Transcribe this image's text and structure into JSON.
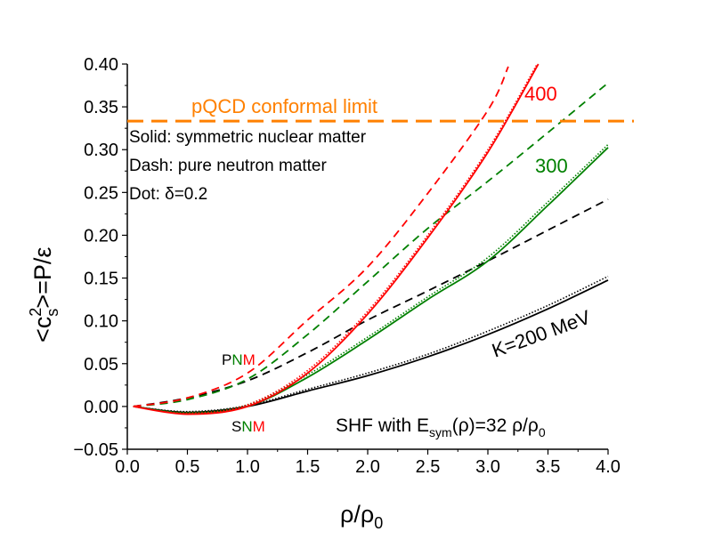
{
  "chart_data": {
    "type": "line",
    "xlabel": "ρ/ρ0",
    "xlabel_main": "ρ/ρ",
    "xlabel_sub": "0",
    "ylabel": "<cs2>=P/ε",
    "ylabel_parts": {
      "pre": "<c",
      "sup": "2",
      "sub": "s",
      "post": ">=P/ε"
    },
    "xlim": [
      0,
      4.0
    ],
    "ylim": [
      -0.05,
      0.4
    ],
    "xticks": [
      "0.0",
      "0.5",
      "1.0",
      "1.5",
      "2.0",
      "2.5",
      "3.0",
      "3.5",
      "4.0"
    ],
    "yticks": [
      "−0.05",
      "0.00",
      "0.05",
      "0.10",
      "0.15",
      "0.20",
      "0.25",
      "0.30",
      "0.35",
      "0.40"
    ],
    "grid": false,
    "reference_line": {
      "label": "pQCD conformal limit",
      "y": 0.3333,
      "color": "#ff8000"
    },
    "legend_text": [
      "Solid: symmetric nuclear matter",
      "Dash: pure neutron matter",
      "Dot: δ=0.2"
    ],
    "annotations": {
      "k400": "400",
      "k300": "300",
      "k200": "K=200 MeV",
      "pnm": [
        "P",
        "N",
        "M"
      ],
      "snm": [
        "S",
        "N",
        "M"
      ],
      "shf": {
        "pre": "SHF with E",
        "sub": "sym",
        "mid": "(ρ)=32 ρ/ρ",
        "sub2": "0"
      }
    },
    "colors": {
      "K200": "#000000",
      "K300": "#008000",
      "K400": "#ff0000"
    },
    "series": [
      {
        "K": 200,
        "style": "solid",
        "color": "#000000",
        "x": [
          0.05,
          0.5,
          1.0,
          1.5,
          2.0,
          2.5,
          3.0,
          3.5,
          4.0
        ],
        "y": [
          0.0,
          -0.007,
          0.0,
          0.018,
          0.036,
          0.058,
          0.084,
          0.114,
          0.1475
        ]
      },
      {
        "K": 200,
        "style": "dotted",
        "color": "#000000",
        "x": [
          0.05,
          0.5,
          1.0,
          1.5,
          2.0,
          2.5,
          3.0,
          3.5,
          4.0
        ],
        "y": [
          0.0,
          -0.006,
          0.001,
          0.02,
          0.039,
          0.061,
          0.088,
          0.118,
          0.152
        ]
      },
      {
        "K": 200,
        "style": "dashed",
        "color": "#000000",
        "x": [
          0.05,
          0.5,
          1.0,
          1.5,
          2.0,
          2.5,
          3.0,
          3.5,
          4.0
        ],
        "y": [
          0.0,
          0.01,
          0.03,
          0.063,
          0.101,
          0.135,
          0.17,
          0.206,
          0.242
        ]
      },
      {
        "K": 300,
        "style": "solid",
        "color": "#008000",
        "x": [
          0.05,
          0.5,
          1.0,
          1.5,
          2.0,
          2.5,
          3.0,
          3.5,
          4.0
        ],
        "y": [
          0.0,
          -0.008,
          0.0,
          0.034,
          0.078,
          0.125,
          0.17,
          0.235,
          0.3025
        ]
      },
      {
        "K": 300,
        "style": "dotted",
        "color": "#008000",
        "x": [
          0.05,
          0.5,
          1.0,
          1.5,
          2.0,
          2.5,
          3.0,
          3.5,
          4.0
        ],
        "y": [
          0.0,
          -0.007,
          0.002,
          0.037,
          0.081,
          0.128,
          0.174,
          0.239,
          0.306
        ]
      },
      {
        "K": 300,
        "style": "dashed",
        "color": "#008000",
        "x": [
          0.05,
          0.5,
          1.0,
          1.5,
          2.0,
          2.5,
          3.0,
          3.5,
          4.0
        ],
        "y": [
          0.0,
          0.008,
          0.032,
          0.084,
          0.146,
          0.208,
          0.263,
          0.32,
          0.378
        ]
      },
      {
        "K": 400,
        "style": "solid",
        "color": "#ff0000",
        "x": [
          0.05,
          0.5,
          1.0,
          1.5,
          2.0,
          2.5,
          3.0,
          3.42
        ],
        "y": [
          0.0,
          -0.009,
          0.0,
          0.039,
          0.108,
          0.197,
          0.297,
          0.4
        ]
      },
      {
        "K": 400,
        "style": "dotted",
        "color": "#ff0000",
        "x": [
          0.05,
          0.5,
          1.0,
          1.5,
          2.0,
          2.5,
          3.0,
          3.41
        ],
        "y": [
          0.0,
          -0.008,
          0.002,
          0.042,
          0.111,
          0.2,
          0.3,
          0.4
        ]
      },
      {
        "K": 400,
        "style": "dashed",
        "color": "#ff0000",
        "x": [
          0.05,
          0.5,
          1.0,
          1.5,
          2.0,
          2.5,
          3.0,
          3.17
        ],
        "y": [
          0.0,
          0.01,
          0.039,
          0.101,
          0.163,
          0.249,
          0.346,
          0.397
        ]
      }
    ]
  }
}
